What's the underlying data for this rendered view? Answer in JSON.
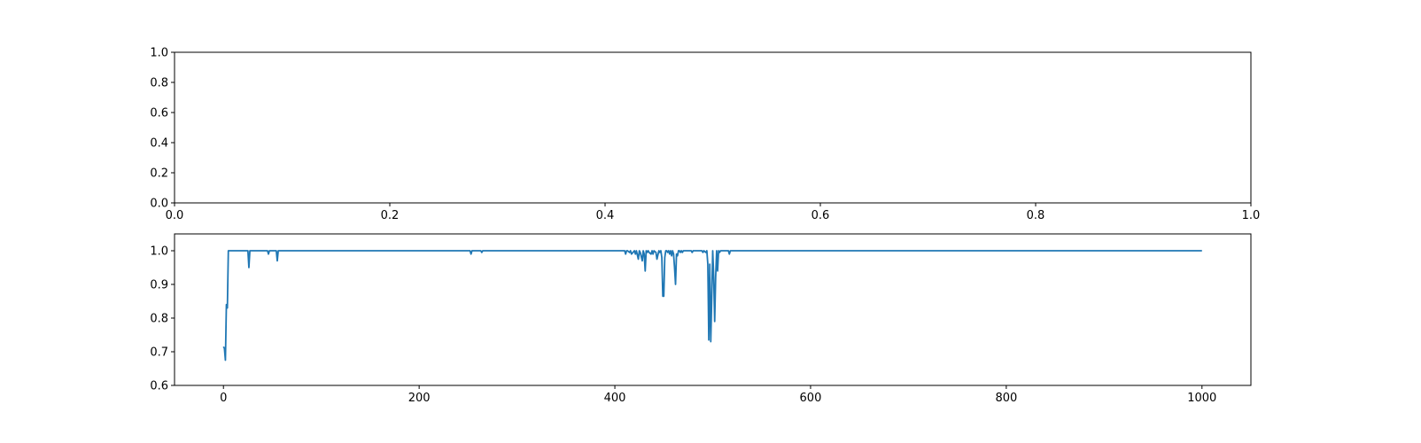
{
  "chart_data": [
    {
      "type": "line",
      "title": "",
      "xlabel": "",
      "ylabel": "",
      "xlim": [
        0,
        1
      ],
      "ylim": [
        0,
        1
      ],
      "xticks": [
        0.0,
        0.2,
        0.4,
        0.6,
        0.8,
        1.0
      ],
      "yticks": [
        0.0,
        0.2,
        0.4,
        0.6,
        0.8,
        1.0
      ],
      "xtick_labels": [
        "0.0",
        "0.2",
        "0.4",
        "0.6",
        "0.8",
        "1.0"
      ],
      "ytick_labels": [
        "0.0",
        "0.2",
        "0.4",
        "0.6",
        "0.8",
        "1.0"
      ],
      "grid": false,
      "series": []
    },
    {
      "type": "line",
      "title": "",
      "xlabel": "",
      "ylabel": "",
      "xlim": [
        -50,
        1050
      ],
      "ylim": [
        0.6,
        1.05
      ],
      "xticks": [
        0,
        200,
        400,
        600,
        800,
        1000
      ],
      "yticks": [
        0.6,
        0.7,
        0.8,
        0.9,
        1.0
      ],
      "xtick_labels": [
        "0",
        "200",
        "400",
        "600",
        "800",
        "1000"
      ],
      "ytick_labels": [
        "0.6",
        "0.7",
        "0.8",
        "0.9",
        "1.0"
      ],
      "grid": false,
      "line_color": "#1f77b4",
      "series": [
        {
          "x": [
            0,
            1,
            2,
            3,
            4,
            5,
            6,
            7,
            24,
            25,
            26,
            27,
            28,
            45,
            46,
            47,
            53,
            54,
            55,
            56,
            57,
            252,
            253,
            254,
            255,
            263,
            264,
            265,
            410,
            411,
            412,
            413,
            415,
            416,
            417,
            420,
            421,
            422,
            424,
            425,
            426,
            428,
            429,
            430,
            431,
            432,
            433,
            434,
            435,
            437,
            438,
            439,
            440,
            442,
            443,
            445,
            446,
            447,
            448,
            449,
            450,
            451,
            452,
            453,
            454,
            455,
            456,
            457,
            458,
            459,
            460,
            461,
            462,
            463,
            464,
            465,
            466,
            467,
            468,
            469,
            470,
            478,
            479,
            480,
            488,
            489,
            490,
            491,
            493,
            494,
            495,
            496,
            497,
            498,
            499,
            500,
            501,
            502,
            503,
            504,
            505,
            506,
            507,
            508,
            509,
            510,
            516,
            517,
            518,
            519,
            1000
          ],
          "y": [
            0.715,
            0.71,
            0.675,
            0.84,
            0.83,
            1.0,
            1.0,
            1.0,
            1.0,
            1.0,
            0.95,
            1.0,
            1.0,
            1.0,
            0.99,
            1.0,
            1.0,
            1.0,
            0.97,
            1.0,
            1.0,
            1.0,
            0.99,
            1.0,
            1.0,
            1.0,
            0.995,
            1.0,
            1.0,
            0.99,
            1.0,
            1.0,
            0.995,
            1.0,
            0.99,
            1.0,
            0.99,
            1.0,
            0.975,
            1.0,
            0.995,
            0.97,
            1.0,
            0.99,
            0.94,
            1.0,
            0.995,
            1.0,
            0.995,
            0.99,
            1.0,
            0.99,
            1.0,
            0.995,
            0.975,
            1.0,
            0.995,
            1.0,
            0.98,
            0.865,
            0.865,
            0.98,
            1.0,
            1.0,
            0.995,
            1.0,
            0.99,
            1.0,
            0.985,
            1.0,
            0.99,
            0.95,
            0.9,
            0.99,
            0.985,
            1.0,
            1.0,
            0.995,
            1.0,
            0.995,
            1.0,
            1.0,
            0.995,
            1.0,
            1.0,
            1.0,
            0.995,
            1.0,
            0.995,
            1.0,
            0.96,
            0.735,
            0.96,
            0.73,
            0.86,
            1.0,
            0.925,
            0.79,
            0.92,
            1.0,
            0.94,
            1.0,
            0.995,
            1.0,
            1.0,
            1.0,
            1.0,
            0.99,
            1.0,
            1.0,
            1.0
          ]
        }
      ]
    }
  ]
}
